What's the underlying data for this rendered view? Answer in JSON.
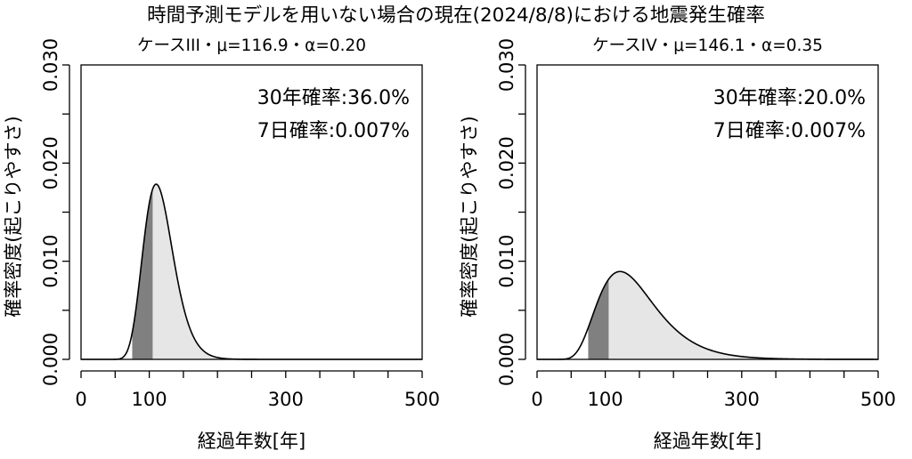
{
  "figure": {
    "title": "時間予測モデルを用いない場合の現在(2024/8/8)における地震発生確率"
  },
  "chart_data": [
    {
      "type": "area",
      "subtitle": "ケースIII・μ=116.9・α=0.20",
      "xlabel": "経過年数[年]",
      "ylabel": "確率密度(起こりやすさ)",
      "xlim": [
        0,
        500
      ],
      "ylim": [
        0,
        0.03
      ],
      "x_ticks": [
        0,
        100,
        300,
        500
      ],
      "x_minor_ticks": [
        0,
        50,
        100,
        150,
        200,
        250,
        300,
        350,
        400,
        450,
        500
      ],
      "y_ticks": [
        0.0,
        0.01,
        0.02,
        0.03
      ],
      "y_tick_labels": [
        "0.000",
        "0.010",
        "0.020",
        "0.030"
      ],
      "y_minor_ticks": [
        0.0,
        0.005,
        0.01,
        0.015,
        0.02,
        0.025,
        0.03
      ],
      "distribution": {
        "name": "BPT",
        "mu": 116.9,
        "alpha": 0.2
      },
      "shaded_ranges": {
        "dark": [
          75,
          105
        ],
        "light": [
          105,
          300
        ]
      },
      "annotations": [
        "30年確率:36.0%",
        "7日確率:0.007%"
      ],
      "grid": false,
      "colors": {
        "dark": "#808080",
        "light": "#e6e6e6",
        "line": "#000000"
      }
    },
    {
      "type": "area",
      "subtitle": "ケースIV・μ=146.1・α=0.35",
      "xlabel": "経過年数[年]",
      "ylabel": "確率密度(起こりやすさ)",
      "xlim": [
        0,
        500
      ],
      "ylim": [
        0,
        0.03
      ],
      "x_ticks": [
        0,
        100,
        300,
        500
      ],
      "x_minor_ticks": [
        0,
        50,
        100,
        150,
        200,
        250,
        300,
        350,
        400,
        450,
        500
      ],
      "y_ticks": [
        0.0,
        0.01,
        0.02,
        0.03
      ],
      "y_tick_labels": [
        "0.000",
        "0.010",
        "0.020",
        "0.030"
      ],
      "y_minor_ticks": [
        0.0,
        0.005,
        0.01,
        0.015,
        0.02,
        0.025,
        0.03
      ],
      "distribution": {
        "name": "BPT",
        "mu": 146.1,
        "alpha": 0.35
      },
      "shaded_ranges": {
        "dark": [
          75,
          105
        ],
        "light": [
          105,
          400
        ]
      },
      "annotations": [
        "30年確率:20.0%",
        "7日確率:0.007%"
      ],
      "grid": false,
      "colors": {
        "dark": "#808080",
        "light": "#e6e6e6",
        "line": "#000000"
      }
    }
  ]
}
